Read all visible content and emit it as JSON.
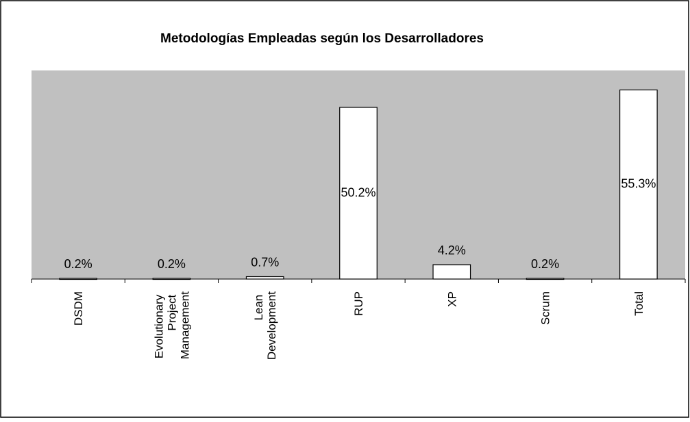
{
  "chart_data": {
    "type": "bar",
    "title": "Metodologías Empleadas según los Desarrolladores",
    "categories": [
      "DSDM",
      "Evolutionary Project Management",
      "Lean Development",
      "RUP",
      "XP",
      "Scrum",
      "Total"
    ],
    "values": [
      0.2,
      0.2,
      0.7,
      50.2,
      4.2,
      0.2,
      55.3
    ],
    "value_labels": [
      "0.2%",
      "0.2%",
      "0.7%",
      "50.2%",
      "4.2%",
      "0.2%",
      "55.3%"
    ],
    "color": "#ffffff",
    "plot_color": "#c0c0c0",
    "ylim": [
      0,
      61
    ]
  }
}
